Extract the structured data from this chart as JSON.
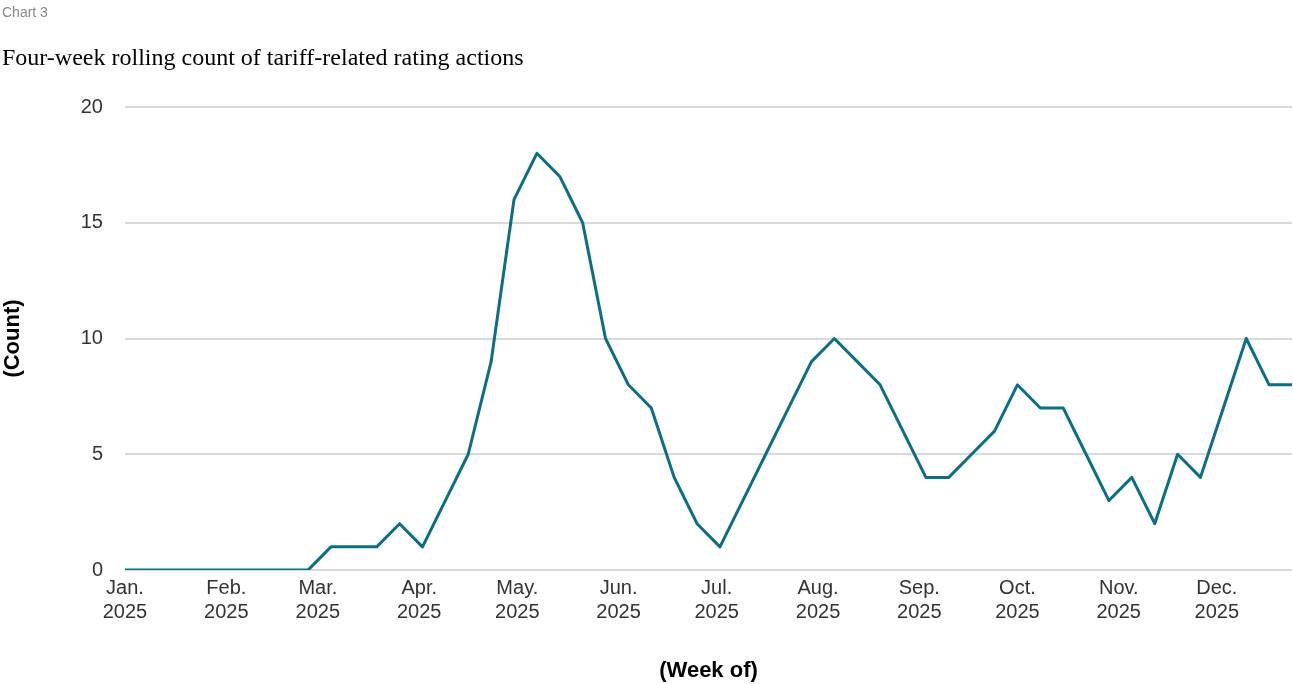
{
  "chart_data": {
    "type": "line",
    "title": "Four-week rolling count of tariff-related rating actions",
    "annotations": [
      "Chart 3"
    ],
    "xlabel": "(Week of)",
    "ylabel": "(Count)",
    "x": [
      "2025-01-01",
      "2025-01-08",
      "2025-01-15",
      "2025-01-22",
      "2025-01-29",
      "2025-02-05",
      "2025-02-12",
      "2025-02-19",
      "2025-02-26",
      "2025-03-05",
      "2025-03-12",
      "2025-03-19",
      "2025-03-26",
      "2025-04-02",
      "2025-04-09",
      "2025-04-16",
      "2025-04-23",
      "2025-04-30",
      "2025-05-07",
      "2025-05-14",
      "2025-05-21",
      "2025-05-28",
      "2025-06-04",
      "2025-06-11",
      "2025-06-18",
      "2025-06-25",
      "2025-07-02",
      "2025-07-09",
      "2025-07-16",
      "2025-07-23",
      "2025-07-30",
      "2025-08-06",
      "2025-08-13",
      "2025-08-20",
      "2025-08-27",
      "2025-09-03",
      "2025-09-10",
      "2025-09-17",
      "2025-09-24",
      "2025-10-01",
      "2025-10-08",
      "2025-10-15",
      "2025-10-22",
      "2025-10-29",
      "2025-11-05",
      "2025-11-12",
      "2025-11-19",
      "2025-11-26",
      "2025-12-03",
      "2025-12-10",
      "2025-12-17",
      "2025-12-24"
    ],
    "series": [
      {
        "color": "#0a6e87",
        "values": [
          0,
          0,
          0,
          0,
          0,
          0,
          0,
          0,
          0,
          1,
          1,
          1,
          2,
          1,
          3,
          5,
          9,
          16,
          18,
          17,
          15,
          10,
          8,
          7,
          4,
          2,
          1,
          3,
          5,
          7,
          9,
          10,
          9,
          8,
          6,
          4,
          4,
          5,
          6,
          8,
          7,
          7,
          5,
          3,
          4,
          2,
          5,
          4,
          7,
          10,
          8,
          8
        ]
      }
    ],
    "xlim": [
      "2025-01-01",
      "2025-12-24"
    ],
    "xticks": [
      {
        "value": "2025-01-01",
        "label": "Jan. 2025"
      },
      {
        "value": "2025-02-01",
        "label": "Feb. 2025"
      },
      {
        "value": "2025-03-01",
        "label": "Mar. 2025"
      },
      {
        "value": "2025-04-01",
        "label": "Apr. 2025"
      },
      {
        "value": "2025-05-01",
        "label": "May. 2025"
      },
      {
        "value": "2025-06-01",
        "label": "Jun. 2025"
      },
      {
        "value": "2025-07-01",
        "label": "Jul. 2025"
      },
      {
        "value": "2025-08-01",
        "label": "Aug. 2025"
      },
      {
        "value": "2025-09-01",
        "label": "Sep. 2025"
      },
      {
        "value": "2025-10-01",
        "label": "Oct. 2025"
      },
      {
        "value": "2025-11-01",
        "label": "Nov. 2025"
      },
      {
        "value": "2025-12-01",
        "label": "Dec. 2025"
      }
    ],
    "ylim": [
      0,
      20
    ],
    "yticks": [
      0,
      5,
      10,
      15,
      20
    ],
    "grid": "y",
    "legend": false,
    "marker": "none",
    "line_style": "solid"
  }
}
